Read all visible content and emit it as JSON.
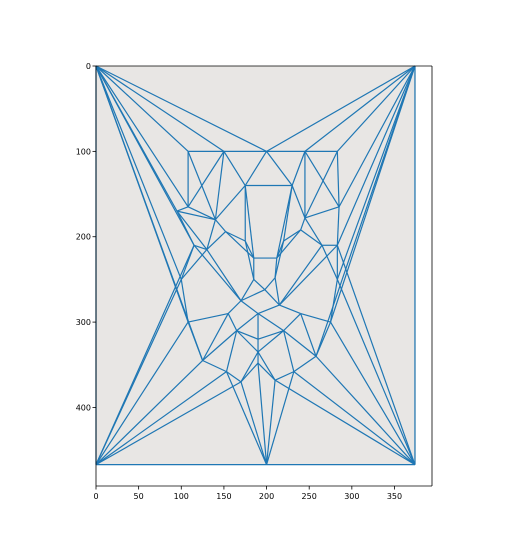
{
  "chart_data": {
    "type": "scatter",
    "title": "",
    "xlabel": "",
    "ylabel": "",
    "image_description_omitted": true,
    "xlim": [
      0,
      394
    ],
    "ylim": [
      492,
      0
    ],
    "y_inverted": true,
    "grid": false,
    "legend": "none",
    "line_color": "#1f77b4",
    "x_ticks": [
      "0",
      "50",
      "100",
      "150",
      "200",
      "250",
      "300",
      "350"
    ],
    "y_ticks": [
      "0",
      "100",
      "200",
      "300",
      "400"
    ],
    "points": [
      [
        0,
        0
      ],
      [
        374,
        0
      ],
      [
        0,
        467
      ],
      [
        374,
        467
      ],
      [
        200,
        467
      ],
      [
        108,
        100
      ],
      [
        200,
        100
      ],
      [
        283,
        100
      ],
      [
        150,
        100
      ],
      [
        245,
        100
      ],
      [
        95,
        170
      ],
      [
        108,
        165
      ],
      [
        115,
        210
      ],
      [
        100,
        250
      ],
      [
        108,
        300
      ],
      [
        125,
        345
      ],
      [
        153,
        358
      ],
      [
        170,
        370
      ],
      [
        190,
        348
      ],
      [
        210,
        368
      ],
      [
        232,
        358
      ],
      [
        258,
        340
      ],
      [
        275,
        300
      ],
      [
        283,
        250
      ],
      [
        283,
        210
      ],
      [
        285,
        165
      ],
      [
        130,
        215
      ],
      [
        152,
        194
      ],
      [
        175,
        205
      ],
      [
        220,
        205
      ],
      [
        240,
        192
      ],
      [
        265,
        210
      ],
      [
        185,
        250
      ],
      [
        198,
        262
      ],
      [
        210,
        248
      ],
      [
        170,
        275
      ],
      [
        215,
        280
      ],
      [
        190,
        290
      ],
      [
        155,
        290
      ],
      [
        240,
        290
      ],
      [
        165,
        310
      ],
      [
        190,
        320
      ],
      [
        220,
        310
      ],
      [
        190,
        335
      ],
      [
        140,
        180
      ],
      [
        245,
        178
      ],
      [
        185,
        225
      ],
      [
        212,
        225
      ],
      [
        175,
        140
      ],
      [
        230,
        140
      ]
    ],
    "edges": [
      [
        0,
        5
      ],
      [
        0,
        8
      ],
      [
        0,
        10
      ],
      [
        0,
        11
      ],
      [
        0,
        12
      ],
      [
        0,
        13
      ],
      [
        0,
        6
      ],
      [
        1,
        6
      ],
      [
        1,
        9
      ],
      [
        1,
        7
      ],
      [
        1,
        25
      ],
      [
        1,
        24
      ],
      [
        1,
        23
      ],
      [
        1,
        22
      ],
      [
        1,
        21
      ],
      [
        2,
        13
      ],
      [
        2,
        14
      ],
      [
        2,
        15
      ],
      [
        2,
        16
      ],
      [
        2,
        17
      ],
      [
        2,
        4
      ],
      [
        2,
        12
      ],
      [
        3,
        21
      ],
      [
        3,
        22
      ],
      [
        3,
        23
      ],
      [
        3,
        20
      ],
      [
        3,
        4
      ],
      [
        3,
        19
      ],
      [
        3,
        24
      ],
      [
        3,
        1
      ],
      [
        4,
        17
      ],
      [
        4,
        18
      ],
      [
        4,
        19
      ],
      [
        4,
        16
      ],
      [
        4,
        20
      ],
      [
        0,
        2
      ],
      [
        0,
        14
      ],
      [
        0,
        15
      ],
      [
        5,
        8
      ],
      [
        8,
        6
      ],
      [
        6,
        9
      ],
      [
        9,
        7
      ],
      [
        5,
        11
      ],
      [
        11,
        10
      ],
      [
        10,
        12
      ],
      [
        12,
        13
      ],
      [
        13,
        14
      ],
      [
        14,
        15
      ],
      [
        15,
        16
      ],
      [
        16,
        17
      ],
      [
        17,
        18
      ],
      [
        18,
        19
      ],
      [
        19,
        20
      ],
      [
        20,
        21
      ],
      [
        21,
        22
      ],
      [
        22,
        23
      ],
      [
        23,
        24
      ],
      [
        24,
        25
      ],
      [
        25,
        7
      ],
      [
        5,
        44
      ],
      [
        8,
        44
      ],
      [
        8,
        48
      ],
      [
        6,
        48
      ],
      [
        6,
        49
      ],
      [
        9,
        49
      ],
      [
        9,
        45
      ],
      [
        7,
        45
      ],
      [
        44,
        27
      ],
      [
        44,
        26
      ],
      [
        44,
        11
      ],
      [
        26,
        12
      ],
      [
        26,
        27
      ],
      [
        27,
        28
      ],
      [
        28,
        46
      ],
      [
        28,
        48
      ],
      [
        44,
        48
      ],
      [
        45,
        30
      ],
      [
        45,
        31
      ],
      [
        45,
        25
      ],
      [
        31,
        24
      ],
      [
        31,
        30
      ],
      [
        30,
        29
      ],
      [
        29,
        47
      ],
      [
        29,
        49
      ],
      [
        45,
        49
      ],
      [
        48,
        49
      ],
      [
        46,
        47
      ],
      [
        48,
        46
      ],
      [
        49,
        47
      ],
      [
        46,
        32
      ],
      [
        47,
        34
      ],
      [
        32,
        33
      ],
      [
        33,
        34
      ],
      [
        32,
        35
      ],
      [
        34,
        36
      ],
      [
        35,
        33
      ],
      [
        36,
        33
      ],
      [
        26,
        35
      ],
      [
        26,
        13
      ],
      [
        35,
        38
      ],
      [
        38,
        14
      ],
      [
        38,
        40
      ],
      [
        40,
        37
      ],
      [
        37,
        35
      ],
      [
        37,
        36
      ],
      [
        31,
        36
      ],
      [
        31,
        23
      ],
      [
        36,
        39
      ],
      [
        39,
        22
      ],
      [
        39,
        42
      ],
      [
        42,
        37
      ],
      [
        37,
        41
      ],
      [
        40,
        41
      ],
      [
        42,
        41
      ],
      [
        41,
        43
      ],
      [
        40,
        43
      ],
      [
        42,
        43
      ],
      [
        43,
        17
      ],
      [
        43,
        18
      ],
      [
        43,
        19
      ],
      [
        40,
        15
      ],
      [
        40,
        16
      ],
      [
        42,
        21
      ],
      [
        42,
        20
      ],
      [
        38,
        15
      ],
      [
        39,
        21
      ],
      [
        12,
        35
      ],
      [
        24,
        36
      ],
      [
        28,
        32
      ],
      [
        29,
        34
      ],
      [
        27,
        46
      ],
      [
        30,
        47
      ],
      [
        11,
        8
      ],
      [
        25,
        9
      ],
      [
        10,
        44
      ],
      [
        10,
        26
      ]
    ]
  }
}
